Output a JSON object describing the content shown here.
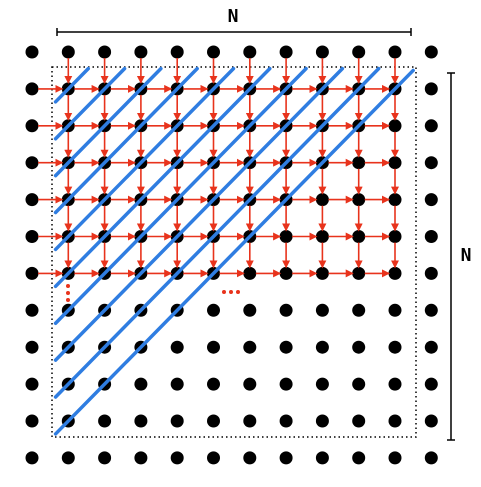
{
  "labels": {
    "top": "N",
    "right": "N"
  }
}
